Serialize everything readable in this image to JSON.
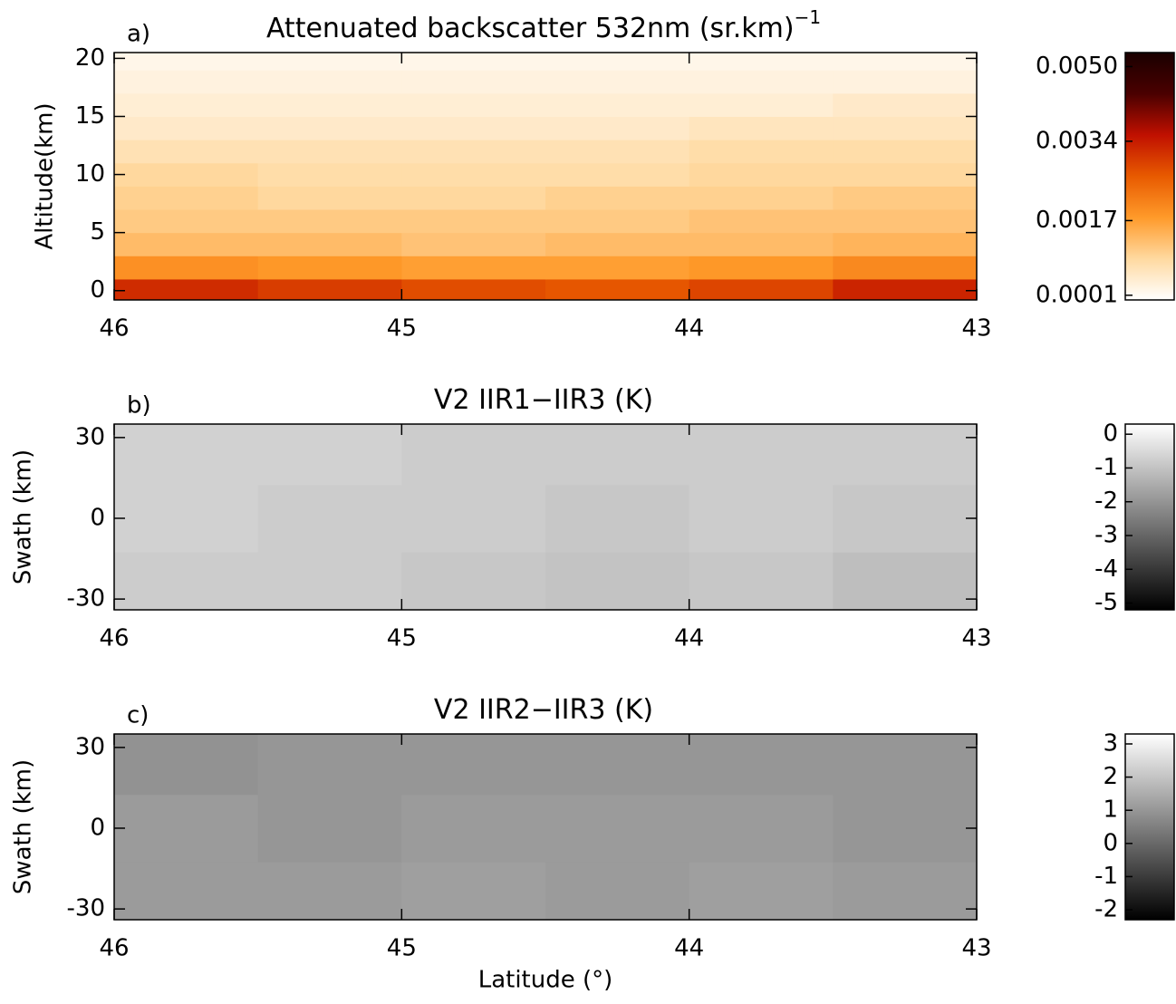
{
  "chart_data": [
    {
      "type": "heatmap",
      "panel_label": "a)",
      "title": "Attenuated backscatter 532nm (sr.km)",
      "title_superscript": "−1",
      "ylabel": "Altitude(km)",
      "xlim": [
        46,
        43
      ],
      "xticks": [
        46,
        45,
        44,
        43
      ],
      "ylim": [
        -0.8,
        20.5
      ],
      "yticks": [
        0,
        5,
        10,
        15,
        20
      ],
      "x": [
        45.75,
        45.25,
        44.75,
        44.25,
        43.75,
        43.25
      ],
      "y": [
        0,
        2,
        4,
        6,
        8,
        10,
        12,
        14,
        16,
        18,
        20
      ],
      "z": [
        [
          0.0032,
          0.003,
          0.0028,
          0.0027,
          0.0029,
          0.0033
        ],
        [
          0.0019,
          0.0018,
          0.0017,
          0.0017,
          0.0018,
          0.002
        ],
        [
          0.0013,
          0.0013,
          0.0012,
          0.0013,
          0.0013,
          0.0014
        ],
        [
          0.0011,
          0.0011,
          0.0011,
          0.0011,
          0.0012,
          0.0012
        ],
        [
          0.001,
          0.0009,
          0.0009,
          0.001,
          0.001,
          0.0011
        ],
        [
          0.0009,
          0.0008,
          0.0008,
          0.0008,
          0.0009,
          0.0009
        ],
        [
          0.0007,
          0.0007,
          0.0007,
          0.0007,
          0.0008,
          0.0008
        ],
        [
          0.0005,
          0.0005,
          0.0005,
          0.0005,
          0.0006,
          0.0006
        ],
        [
          0.0004,
          0.0004,
          0.0004,
          0.0004,
          0.0004,
          0.0005
        ],
        [
          0.0003,
          0.0003,
          0.0003,
          0.0003,
          0.0003,
          0.0003
        ],
        [
          0.0002,
          0.0002,
          0.0002,
          0.0002,
          0.0002,
          0.0002
        ]
      ],
      "clim": [
        0,
        0.0053
      ],
      "cticks": [
        {
          "value": 0.005,
          "label": "0.0050"
        },
        0.0034,
        0.0017,
        0.0001
      ],
      "colormap": [
        "#ffffff",
        "#ffd9a0",
        "#ff9a2a",
        "#e85a00",
        "#c01000",
        "#4a0000",
        "#1a0000"
      ]
    },
    {
      "type": "heatmap",
      "panel_label": "b)",
      "title": "V2 IIR1−IIR3 (K)",
      "ylabel": "Swath (km)",
      "xlim": [
        46,
        43
      ],
      "xticks": [
        46,
        45,
        44,
        43
      ],
      "ylim": [
        -34,
        35
      ],
      "yticks": [
        -30,
        0,
        30
      ],
      "x": [
        45.75,
        45.25,
        44.75,
        44.25,
        43.75,
        43.25
      ],
      "y": [
        -25,
        0,
        25
      ],
      "z": [
        [
          -0.8,
          -0.8,
          -0.9,
          -1.0,
          -0.9,
          -1.1
        ],
        [
          -0.7,
          -0.8,
          -0.8,
          -0.9,
          -0.8,
          -0.9
        ],
        [
          -0.7,
          -0.7,
          -0.8,
          -0.8,
          -0.8,
          -0.8
        ]
      ],
      "clim": [
        -5.2,
        0.3
      ],
      "cticks": [
        0,
        -1,
        -2,
        -3,
        -4,
        -5
      ],
      "colormap": [
        "#000000",
        "#ffffff"
      ]
    },
    {
      "type": "heatmap",
      "panel_label": "c)",
      "title": "V2 IIR2−IIR3 (K)",
      "ylabel": "Swath (km)",
      "xlabel": "Latitude (°)",
      "xlim": [
        46,
        43
      ],
      "xticks": [
        46,
        45,
        44,
        43
      ],
      "ylim": [
        -34,
        35
      ],
      "yticks": [
        -30,
        0,
        30
      ],
      "x": [
        45.75,
        45.25,
        44.75,
        44.25,
        43.75,
        43.25
      ],
      "y": [
        -25,
        0,
        25
      ],
      "z": [
        [
          1.1,
          1.1,
          1.2,
          1.1,
          1.2,
          1.1
        ],
        [
          1.1,
          1.0,
          1.1,
          1.1,
          1.1,
          1.0
        ],
        [
          0.9,
          1.0,
          1.0,
          1.0,
          1.0,
          1.0
        ]
      ],
      "clim": [
        -2.3,
        3.3
      ],
      "cticks": [
        3,
        2,
        1,
        0,
        -1,
        -2
      ],
      "colormap": [
        "#000000",
        "#ffffff"
      ]
    }
  ]
}
